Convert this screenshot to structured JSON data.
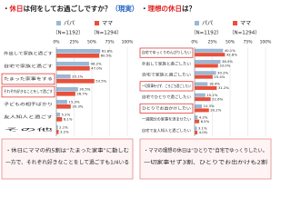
{
  "chart_data": [
    {
      "type": "hbar",
      "title": [
        "・",
        "休日",
        "は何をしてお過ごしですか？",
        "（現実）"
      ],
      "title_colors": [
        "#222222",
        "#e02020",
        "#222222",
        "#2060c0"
      ],
      "categories": [
        "外出して家族と過ごす",
        "自宅で家族と過ごす",
        "たまった家事をする",
        "それぞれ好きなことをして過ごす",
        "子どもの相手ばかり",
        "友人知人と過ごす",
        "その他"
      ],
      "highlight": [
        2,
        3
      ],
      "series": [
        {
          "name": "パパ",
          "n": "（N=1192）",
          "color": "#9bb7d4",
          "values": [
            61.8,
            46.2,
            20.1,
            30.5,
            15.3,
            5.2,
            2.1
          ],
          "value_labels": [
            "61.8%",
            "46.2%",
            "20.1%",
            "30.5%",
            "15.3%",
            "5.2%",
            "2.1%"
          ]
        },
        {
          "name": "ママ",
          "n": "（N=1294）",
          "color": "#e8503a",
          "values": [
            60.5,
            47.0,
            53.5,
            26.7,
            20.3,
            8.1,
            3.2
          ],
          "value_labels": [
            "60.5%",
            "47.0%",
            "53.5%",
            "26.7%",
            "20.3%",
            "8.1%",
            "3.2%"
          ]
        }
      ],
      "xlim": [
        0,
        100
      ],
      "xticks": [
        {
          "value": 0,
          "label": "0%"
        },
        {
          "value": 25,
          "label": "25%"
        },
        {
          "value": 50,
          "label": "50%"
        },
        {
          "value": 75,
          "label": "75%"
        },
        {
          "value": 100,
          "label": "100%"
        }
      ],
      "grid": true
    },
    {
      "type": "hbar",
      "title": [
        "・",
        "理想の休日",
        "は？"
      ],
      "title_colors": [
        "#222222",
        "#e02020",
        "#222222"
      ],
      "categories": [
        "自宅でゆっくりのんびりしたい",
        "外出して家族と過ごしたい",
        "自宅で家族と過ごしたい",
        "一切家事をせず、ごろごろ過ごしたい",
        "自宅でひとりで過ごしたい",
        "ひとりでお出かけしたい",
        "一週間分の家事を済ませたい",
        "自宅で友人知人と過ごしたい"
      ],
      "highlight": [
        0,
        3,
        5
      ],
      "series": [
        {
          "name": "パパ",
          "n": "（N=1192）",
          "color": "#9bb7d4",
          "values": [
            40.1,
            36.5,
            30.2,
            18.4,
            15.1,
            10.3,
            4.2,
            3.1
          ],
          "value_labels": [
            "40.1%",
            "36.5%",
            "30.2%",
            "18.4%",
            "15.1%",
            "10.3%",
            "4.2%",
            "3.1%"
          ]
        },
        {
          "name": "ママ",
          "n": "（N=1294）",
          "color": "#e8503a",
          "values": [
            42.8,
            33.0,
            25.4,
            31.2,
            22.6,
            20.2,
            6.5,
            4.0
          ],
          "value_labels": [
            "42.8%",
            "33.0%",
            "25.4%",
            "31.2%",
            "22.6%",
            "20.2%",
            "6.5%",
            "4.0%"
          ]
        }
      ],
      "xlim": [
        0,
        100
      ],
      "xticks": [
        {
          "value": 0,
          "label": "0%"
        },
        {
          "value": 25,
          "label": "25%"
        },
        {
          "value": 50,
          "label": "50%"
        },
        {
          "value": 75,
          "label": "75%"
        },
        {
          "value": 100,
          "label": "100%"
        }
      ],
      "grid": true
    }
  ],
  "notes": [
    [
      "・休日にママの約5割は“たまった家事”に勤しむ",
      "一方で、それぞれ好きなことをして過ごすも1/4いる"
    ],
    [
      "・ママの理想の休日は“ひとりで”自宅でゆっくりしたい。",
      "一切家事せず3割、ひとりでお出かけも2割"
    ]
  ]
}
